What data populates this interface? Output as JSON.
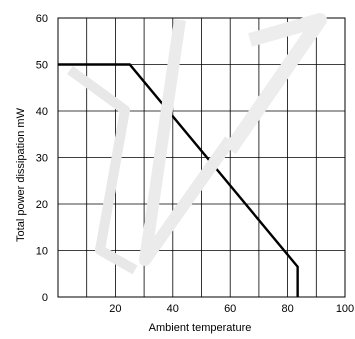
{
  "chart_data": {
    "type": "line",
    "xlabel": "Ambient temperature",
    "ylabel": "Total power dissipation mW",
    "xlim": [
      0,
      100
    ],
    "ylim": [
      0,
      60
    ],
    "x_ticks": [
      20,
      40,
      60,
      80,
      100
    ],
    "y_ticks": [
      0,
      10,
      20,
      30,
      40,
      50,
      60
    ],
    "x_grid_step": 10,
    "y_grid_step": 10,
    "grid": true,
    "series": [
      {
        "x": [
          0,
          25,
          83.5,
          83.5
        ],
        "y": [
          50,
          50,
          6.5,
          0
        ]
      }
    ],
    "colors": {
      "line": "#000000",
      "grid": "#000000",
      "watermark": "#e6e6e6"
    }
  }
}
